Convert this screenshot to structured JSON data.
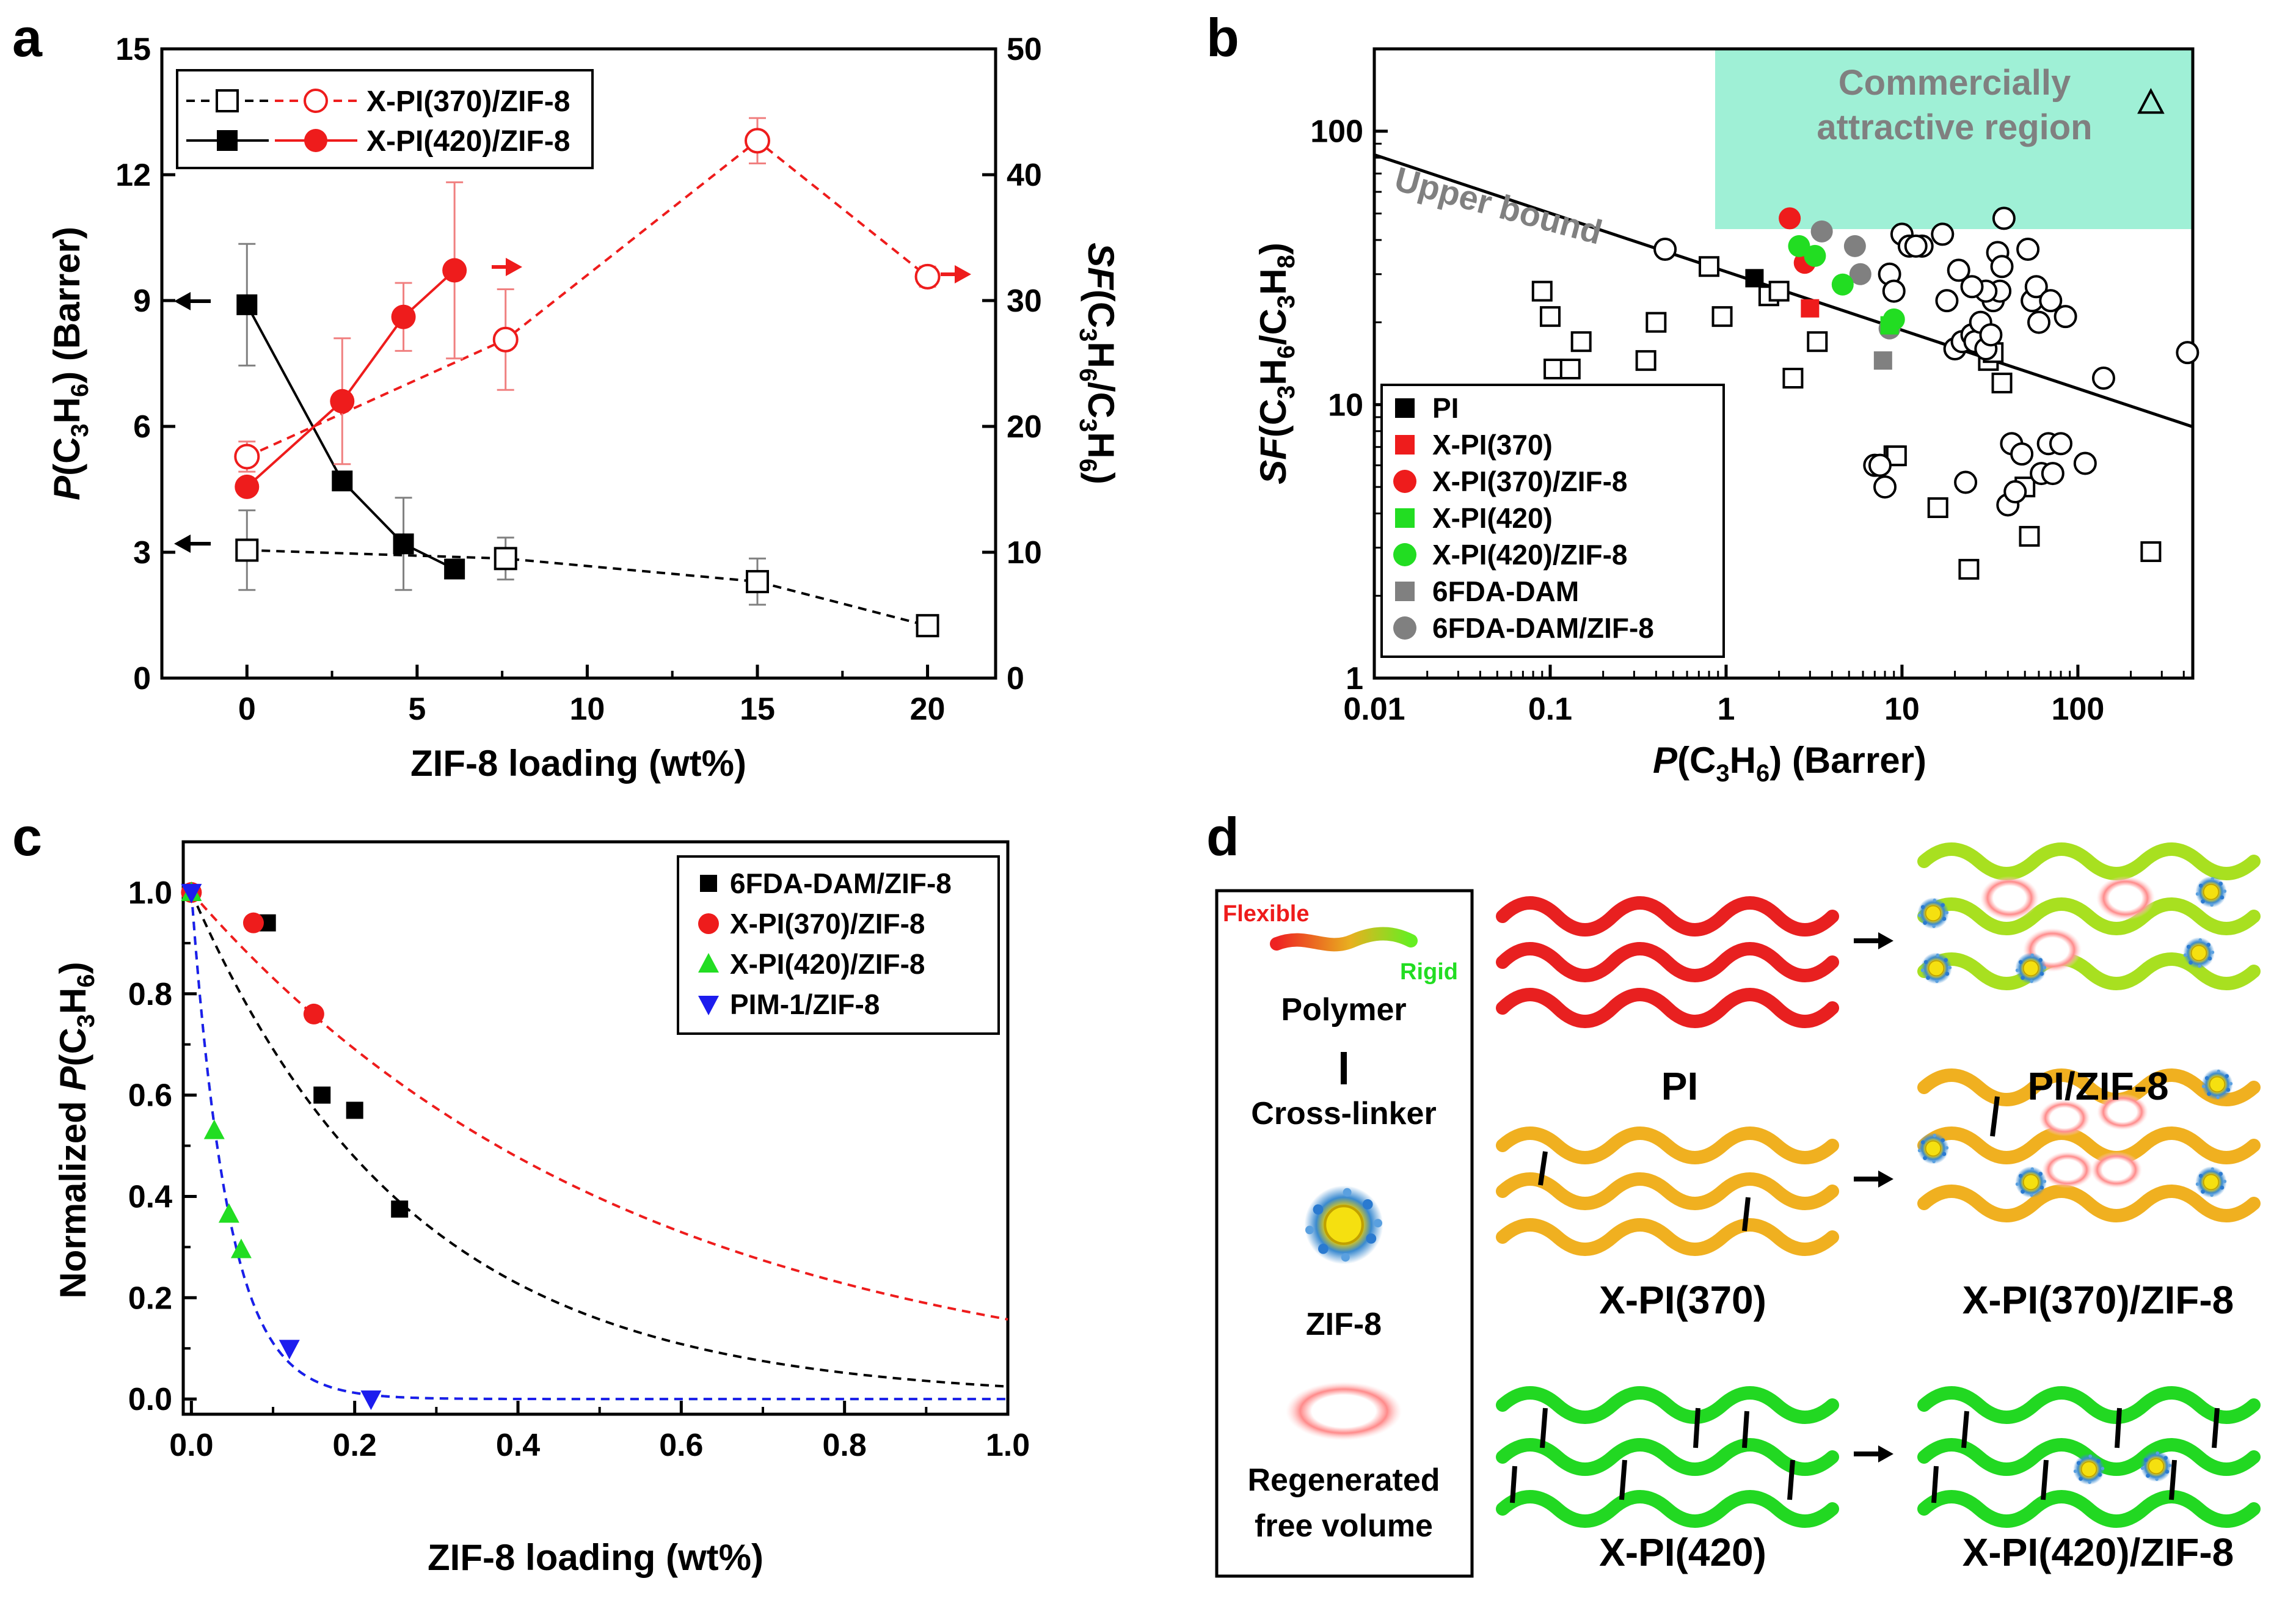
{
  "panel_labels": [
    "a",
    "b",
    "c",
    "d"
  ],
  "chart_data": [
    {
      "panel": "a",
      "type": "line",
      "title": "",
      "xlabel": "ZIF-8 loading (wt%)",
      "ylabel_left": {
        "pre": "P",
        "mid": "(C",
        "s1": "3",
        "mid2": "H",
        "s2": "6",
        "post": ") (Barrer)"
      },
      "ylabel_right": {
        "pre": "SF",
        "mid": "(C",
        "s1": "3",
        "mid2": "H",
        "s2": "6",
        "mid3": "/C",
        "s3": "3",
        "mid4": "H",
        "s4": "6",
        "post": ")"
      },
      "xlim": [
        -2.5,
        22
      ],
      "ylim_left": [
        0,
        15
      ],
      "ylim_right": [
        0,
        50
      ],
      "xticks": [
        0,
        5,
        10,
        15,
        20
      ],
      "yticks_left": [
        0,
        3,
        6,
        9,
        12,
        15
      ],
      "yticks_right": [
        0,
        10,
        20,
        30,
        40,
        50
      ],
      "legend": [
        "X-PI(370)/ZIF-8",
        "X-PI(420)/ZIF-8"
      ],
      "legend_position": "top-left",
      "series": [
        {
          "name": "X-PI(370)/ZIF-8 permeability",
          "axis": "left",
          "color": "#000000",
          "marker": "square-open",
          "dash": true,
          "x": [
            0,
            7.6,
            15,
            20
          ],
          "y": [
            3.05,
            2.85,
            2.3,
            1.25
          ],
          "err": [
            0.95,
            0.5,
            0.55,
            0.15
          ]
        },
        {
          "name": "X-PI(420)/ZIF-8 permeability",
          "axis": "left",
          "color": "#000000",
          "marker": "square-filled",
          "dash": false,
          "x": [
            0,
            2.8,
            4.6,
            6.1
          ],
          "y": [
            8.9,
            4.7,
            3.2,
            2.6
          ],
          "err": [
            1.45,
            0.0,
            1.1,
            0.0
          ]
        },
        {
          "name": "X-PI(370)/ZIF-8 selectivity",
          "axis": "right",
          "color": "#ee1c1c",
          "marker": "circle-open",
          "dash": true,
          "x": [
            0,
            7.6,
            15,
            20
          ],
          "y": [
            17.6,
            26.9,
            42.7,
            31.9
          ],
          "err": [
            1.2,
            4.0,
            1.8,
            0.8
          ]
        },
        {
          "name": "X-PI(420)/ZIF-8 selectivity",
          "axis": "right",
          "color": "#ee1c1c",
          "marker": "circle-filled",
          "dash": false,
          "x": [
            0,
            2.8,
            4.6,
            6.1
          ],
          "y": [
            15.2,
            22.0,
            28.7,
            32.4
          ],
          "err": [
            0.0,
            5.0,
            2.7,
            7.0
          ]
        }
      ]
    },
    {
      "panel": "b",
      "type": "scatter",
      "title": "",
      "xlabel": {
        "pre": "P",
        "mid": "(C",
        "s1": "3",
        "mid2": "H",
        "s2": "6",
        "post": ") (Barrer)"
      },
      "ylabel": {
        "pre": "SF",
        "mid": "(C",
        "s1": "3",
        "mid2": "H",
        "s2": "6",
        "mid3": "/C",
        "s3": "3",
        "mid4": "H",
        "s4": "8",
        "post": ")"
      },
      "xscale": "log",
      "yscale": "log",
      "xlim": [
        0.01,
        450
      ],
      "ylim": [
        1,
        200
      ],
      "xticks": [
        0.01,
        0.1,
        1,
        10,
        100
      ],
      "xticklabels": [
        "0.01",
        "0.1",
        "1",
        "10",
        "100"
      ],
      "yticks": [
        1,
        10,
        100
      ],
      "yticklabels": [
        "1",
        "10",
        "100"
      ],
      "region_label": [
        "Commercially",
        "attractive region"
      ],
      "upper_bound_label": "Upper bound",
      "upper_bound_line": {
        "x": [
          0.01,
          450
        ],
        "y": [
          82,
          8.3
        ]
      },
      "legend": [
        "PI",
        "X-PI(370)",
        "X-PI(370)/ZIF-8",
        "X-PI(420)",
        "X-PI(420)/ZIF-8",
        "6FDA-DAM",
        "6FDA-DAM/ZIF-8"
      ],
      "legend_position": "bottom-left",
      "series": [
        {
          "name": "PI",
          "marker": "square-filled",
          "color": "#000000",
          "x": [
            1.45
          ],
          "y": [
            29
          ]
        },
        {
          "name": "X-PI(370)",
          "marker": "square-filled",
          "color": "#ee1c1c",
          "x": [
            3.0
          ],
          "y": [
            22.5
          ]
        },
        {
          "name": "X-PI(370)/ZIF-8",
          "marker": "circle-filled",
          "color": "#ee1c1c",
          "x": [
            2.3,
            2.8
          ],
          "y": [
            48,
            33
          ]
        },
        {
          "name": "X-PI(420)",
          "marker": "square-filled",
          "color": "#22dd22",
          "x": [
            8.5
          ],
          "y": [
            19.5
          ]
        },
        {
          "name": "X-PI(420)/ZIF-8",
          "marker": "circle-filled",
          "color": "#22dd22",
          "x": [
            2.6,
            3.2,
            4.6,
            9.0
          ],
          "y": [
            38,
            35,
            27.5,
            20.5
          ]
        },
        {
          "name": "6FDA-DAM",
          "marker": "square-filled",
          "color": "#808080",
          "x": [
            7.8
          ],
          "y": [
            14.5
          ]
        },
        {
          "name": "6FDA-DAM/ZIF-8",
          "marker": "circle-filled",
          "color": "#808080",
          "x": [
            3.5,
            5.4,
            5.8,
            8.5
          ],
          "y": [
            43,
            38,
            30,
            19
          ]
        },
        {
          "name": "literature polymers",
          "marker": "square-open",
          "color": "#000000",
          "x": [
            0.09,
            0.1,
            0.105,
            0.13,
            0.15,
            0.35,
            0.4,
            0.8,
            0.95,
            1.75,
            2.0,
            2.4,
            3.3,
            9.0,
            9.3,
            16.0,
            24.0,
            31.0,
            33.0,
            37.0,
            50.0,
            53.0,
            260.0
          ],
          "y": [
            26,
            21,
            13.5,
            13.5,
            17,
            14.5,
            20,
            32,
            21,
            25,
            26,
            12.5,
            17,
            6.5,
            6.5,
            4.2,
            2.5,
            14.5,
            15.5,
            12,
            5,
            3.3,
            2.9
          ]
        },
        {
          "name": "literature MOF/ZIF materials",
          "marker": "circle-open",
          "color": "#000000",
          "x": [
            0.45,
            7.0,
            7.5,
            8.0,
            10.0,
            11.0,
            13.0,
            17.0,
            18.0,
            20.0,
            21.0,
            22.0,
            23.0,
            25.0,
            26.0,
            28.0,
            30.0,
            32.0,
            33.0,
            35.0,
            36.0,
            37.0,
            38.0,
            40.0,
            42.0,
            44.0,
            48.0,
            52.0,
            55.0,
            58.0,
            62.0,
            68.0,
            70.0,
            72.0,
            80.0,
            85.0,
            110.0,
            140.0,
            420.0,
            8.5,
            9.0,
            12.0,
            30.0,
            25.0,
            60.0
          ],
          "y": [
            37,
            6,
            6,
            5,
            42,
            38,
            38,
            42,
            24,
            16,
            31,
            17,
            5.2,
            18,
            17,
            20,
            16,
            18,
            24,
            36,
            26,
            32,
            48,
            4.3,
            7.2,
            4.8,
            6.6,
            37,
            24,
            27,
            5.6,
            7.2,
            24,
            5.6,
            7.2,
            21,
            6.1,
            12.5,
            15.5,
            30,
            26,
            38,
            26,
            27,
            20
          ]
        }
      ],
      "extra_marker": {
        "type": "triangle-open",
        "x": 260,
        "y": 127
      }
    },
    {
      "panel": "c",
      "type": "scatter",
      "title": "",
      "xlabel": "ZIF-8 loading (wt%)",
      "ylabel": {
        "pre": "Normalized ",
        "pv": "P",
        "mid": "(C",
        "s1": "3",
        "mid2": "H",
        "s2": "6",
        "post": ")"
      },
      "xlim": [
        -0.01,
        1.0
      ],
      "ylim": [
        -0.03,
        1.1
      ],
      "xticks": [
        0.0,
        0.2,
        0.4,
        0.6,
        0.8,
        1.0
      ],
      "xticklabels": [
        "0.0",
        "0.2",
        "0.4",
        "0.6",
        "0.8",
        "1.0"
      ],
      "yticks": [
        0.0,
        0.2,
        0.4,
        0.6,
        0.8,
        1.0
      ],
      "yticklabels": [
        "0.0",
        "0.2",
        "0.4",
        "0.6",
        "0.8",
        "1.0"
      ],
      "legend": [
        "6FDA-DAM/ZIF-8",
        "X-PI(370)/ZIF-8",
        "X-PI(420)/ZIF-8",
        "PIM-1/ZIF-8"
      ],
      "legend_position": "top-right",
      "series": [
        {
          "name": "6FDA-DAM/ZIF-8",
          "marker": "square-filled",
          "color": "#000000",
          "x": [
            0.0,
            0.093,
            0.16,
            0.2,
            0.255
          ],
          "y": [
            1.0,
            0.94,
            0.6,
            0.57,
            0.375
          ],
          "fit_k": 3.7,
          "fit_color": "#000000"
        },
        {
          "name": "X-PI(370)/ZIF-8",
          "marker": "circle-filled",
          "color": "#ee1c1c",
          "x": [
            0.0,
            0.076,
            0.15
          ],
          "y": [
            1.0,
            0.94,
            0.76
          ],
          "fit_k": 1.85,
          "fit_color": "#ee1c1c"
        },
        {
          "name": "X-PI(420)/ZIF-8",
          "marker": "triangle-up-filled",
          "color": "#22dd22",
          "x": [
            0.0,
            0.028,
            0.046,
            0.061
          ],
          "y": [
            1.0,
            0.53,
            0.365,
            0.295
          ],
          "fit_k": 22,
          "fit_color": "#22dd22"
        },
        {
          "name": "PIM-1/ZIF-8",
          "marker": "triangle-down-filled",
          "color": "#1c1cee",
          "x": [
            0.0,
            0.12,
            0.22
          ],
          "y": [
            1.0,
            0.1,
            0.0
          ],
          "fit_k": 22,
          "fit_color": "#1c1cee"
        }
      ]
    }
  ],
  "schematic": {
    "legend_polymer": {
      "flexible": "Flexible",
      "rigid": "Rigid",
      "label": "Polymer"
    },
    "legend_crosslinker": "Cross-linker",
    "legend_zif": "ZIF-8",
    "legend_free_volume": [
      "Regenerated",
      "free volume"
    ],
    "rows": [
      {
        "left_label": "PI",
        "right_label": "PI/ZIF-8"
      },
      {
        "left_label": "X-PI(370)",
        "right_label": "X-PI(370)/ZIF-8"
      },
      {
        "left_label": "X-PI(420)",
        "right_label": "X-PI(420)/ZIF-8"
      }
    ]
  }
}
